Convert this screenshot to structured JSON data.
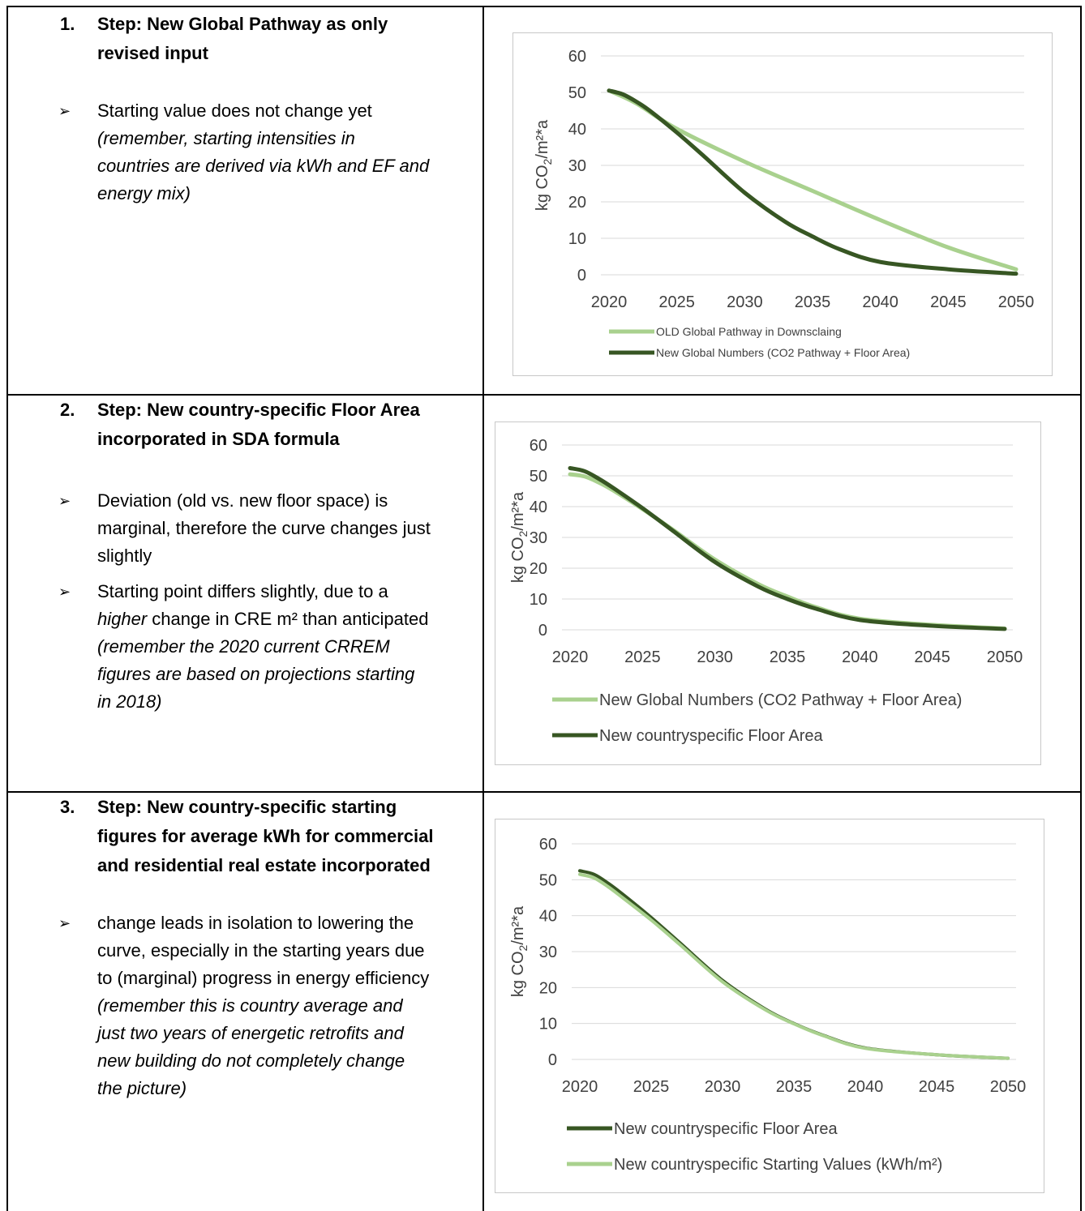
{
  "rows": [
    {
      "step_number": "1.",
      "step_title_line1": "Step: New Global Pathway as only",
      "step_title_line2": "revised input",
      "bullets": [
        {
          "lines": [
            "Starting value does not change yet"
          ],
          "italic_lines": [
            "(remember, starting intensities in",
            "countries are derived via kWh and EF and",
            "energy mix)"
          ]
        }
      ]
    },
    {
      "step_number": "2.",
      "step_title_line1": "Step: New country-specific Floor Area",
      "step_title_line2": "incorporated in SDA formula",
      "bullets": [
        {
          "lines": [
            "Deviation (old vs. new floor space) is",
            "marginal, therefore the curve changes just",
            "slightly"
          ],
          "italic_lines": []
        },
        {
          "lines_mixed": [
            {
              "plain": "Starting point differs slightly, due to a"
            },
            {
              "italic": "higher",
              "plain": " change in CRE m² than anticipated"
            }
          ],
          "italic_lines": [
            "(remember the 2020 current CRREM",
            "figures are based on projections starting",
            "in 2018)"
          ]
        }
      ]
    },
    {
      "step_number": "3.",
      "step_title_line1": "Step: New country-specific starting",
      "step_title_line2": "figures for average kWh for commercial",
      "step_title_line3": "and residential real estate incorporated",
      "bullets": [
        {
          "lines": [
            "change leads in isolation to lowering the",
            "curve, especially in the starting years due",
            "to (marginal) progress in energy efficiency"
          ],
          "italic_lines": [
            "(remember this is country average and",
            "just two years of energetic retrofits and",
            "new building do not completely change",
            "the picture)"
          ]
        }
      ]
    }
  ],
  "chart_data": [
    {
      "type": "line",
      "ylabel": "kg CO2/m²*a",
      "ylim": [
        0,
        60
      ],
      "yticks": [
        "0",
        "10",
        "20",
        "30",
        "40",
        "50",
        "60"
      ],
      "xticks": [
        "2020",
        "2025",
        "2030",
        "2035",
        "2040",
        "2045",
        "2050"
      ],
      "legend_position": "bottom",
      "grid": true,
      "series": [
        {
          "name": "OLD Global Pathway in Downsclaing",
          "color": "#a9d18e",
          "x": [
            2020,
            2022,
            2025,
            2030,
            2035,
            2040,
            2045,
            2050
          ],
          "y": [
            50.5,
            47.0,
            40.0,
            31.0,
            23.0,
            15.0,
            7.5,
            1.5
          ]
        },
        {
          "name": "New Global Numbers (CO2 Pathway + Floor Area)",
          "color": "#375623",
          "x": [
            2020,
            2021,
            2022,
            2023,
            2025,
            2027,
            2030,
            2033,
            2035,
            2037,
            2040,
            2045,
            2050
          ],
          "y": [
            50.5,
            49.5,
            47.5,
            45.0,
            39.0,
            32.5,
            22.5,
            14.5,
            10.5,
            7.0,
            3.5,
            1.5,
            0.3
          ]
        }
      ]
    },
    {
      "type": "line",
      "ylabel": "kg CO2/m²*a",
      "ylim": [
        0,
        60
      ],
      "yticks": [
        "0",
        "10",
        "20",
        "30",
        "40",
        "50",
        "60"
      ],
      "xticks": [
        "2020",
        "2025",
        "2030",
        "2035",
        "2040",
        "2045",
        "2050"
      ],
      "legend_position": "bottom",
      "grid": true,
      "series": [
        {
          "name": "New Global Numbers (CO2 Pathway + Floor Area)",
          "color": "#a9d18e",
          "x": [
            2020,
            2021,
            2022,
            2023,
            2025,
            2027,
            2030,
            2033,
            2035,
            2037,
            2040,
            2045,
            2050
          ],
          "y": [
            50.5,
            49.8,
            47.8,
            45.2,
            39.2,
            32.8,
            22.8,
            14.8,
            10.8,
            7.3,
            3.6,
            1.6,
            0.4
          ]
        },
        {
          "name": "New countryspecific Floor Area",
          "color": "#375623",
          "x": [
            2020,
            2021,
            2022,
            2023,
            2025,
            2027,
            2030,
            2033,
            2035,
            2037,
            2040,
            2045,
            2050
          ],
          "y": [
            52.5,
            51.5,
            49.0,
            46.0,
            39.5,
            32.5,
            22.0,
            14.0,
            10.0,
            6.8,
            3.2,
            1.3,
            0.3
          ]
        }
      ]
    },
    {
      "type": "line",
      "ylabel": "kg CO2/m²*a",
      "ylim": [
        0,
        60
      ],
      "yticks": [
        "0",
        "10",
        "20",
        "30",
        "40",
        "50",
        "60"
      ],
      "xticks": [
        "2020",
        "2025",
        "2030",
        "2035",
        "2040",
        "2045",
        "2050"
      ],
      "legend_position": "bottom",
      "grid": true,
      "series": [
        {
          "name": "New countryspecific Floor Area",
          "color": "#375623",
          "x": [
            2020,
            2021,
            2022,
            2023,
            2025,
            2027,
            2030,
            2033,
            2035,
            2037,
            2040,
            2045,
            2050
          ],
          "y": [
            52.5,
            51.5,
            49.0,
            46.0,
            39.5,
            32.5,
            22.0,
            14.0,
            10.0,
            6.8,
            3.2,
            1.3,
            0.3
          ]
        },
        {
          "name": "New countryspecific Starting Values (kWh/m²)",
          "color": "#a9d18e",
          "x": [
            2020,
            2021,
            2022,
            2023,
            2025,
            2027,
            2030,
            2033,
            2035,
            2037,
            2040,
            2045,
            2050
          ],
          "y": [
            51.5,
            50.5,
            48.0,
            45.0,
            38.8,
            32.0,
            21.6,
            13.8,
            9.9,
            6.7,
            3.1,
            1.3,
            0.3
          ]
        }
      ]
    }
  ]
}
